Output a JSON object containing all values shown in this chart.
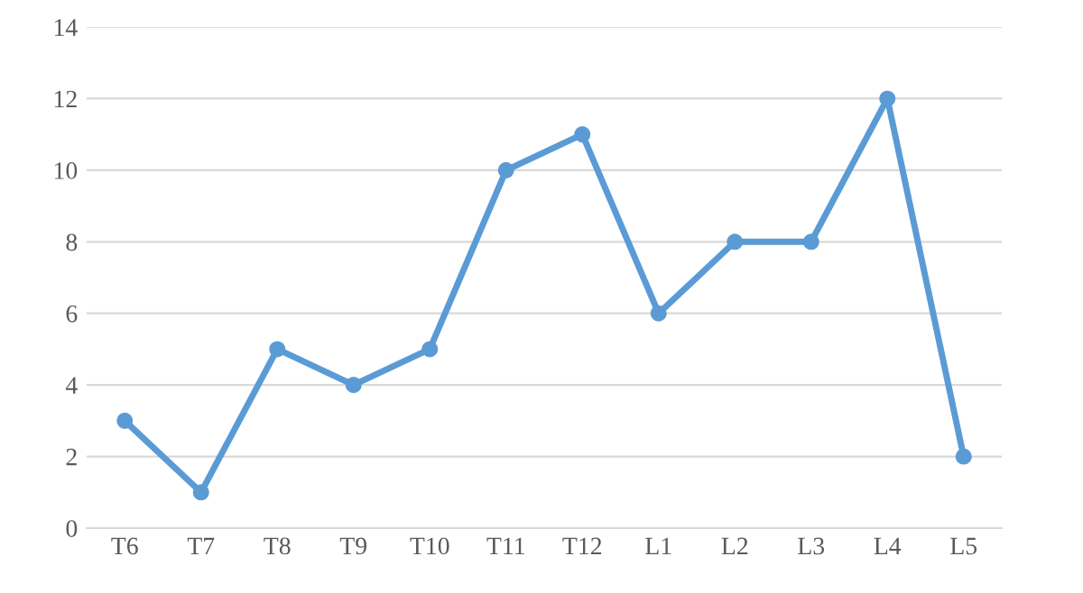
{
  "chart_data": {
    "type": "line",
    "categories": [
      "T6",
      "T7",
      "T8",
      "T9",
      "T10",
      "T11",
      "T12",
      "L1",
      "L2",
      "L3",
      "L4",
      "L5"
    ],
    "series": [
      {
        "color": "#5b9bd5",
        "values": [
          3,
          1,
          5,
          4,
          5,
          10,
          11,
          6,
          8,
          8,
          12,
          2
        ]
      }
    ],
    "ylim": [
      0,
      14
    ],
    "yticks": [
      0,
      2,
      4,
      6,
      8,
      10,
      12,
      14
    ],
    "grid": "y",
    "marker": "circle",
    "line_style": "solid",
    "legend": false
  }
}
